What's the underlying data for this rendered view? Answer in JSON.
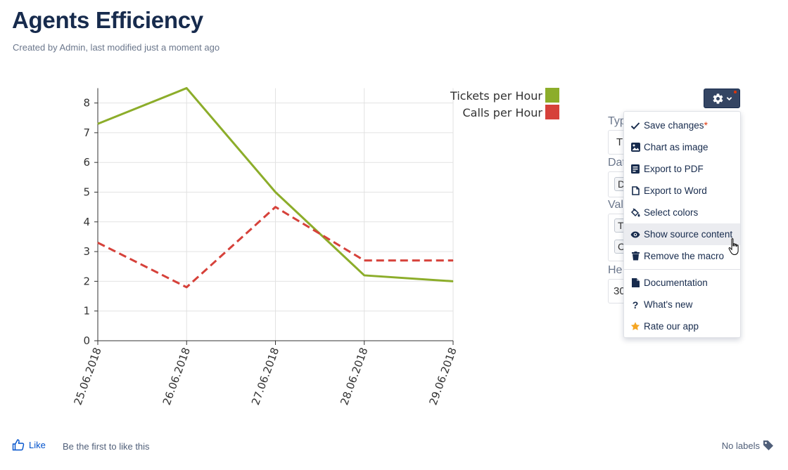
{
  "page": {
    "title": "Agents Efficiency",
    "meta": "Created by Admin, last modified just a moment ago"
  },
  "chart_data": {
    "type": "line",
    "categories": [
      "25.06.2018",
      "26.06.2018",
      "27.06.2018",
      "28.06.2018",
      "29.06.2018"
    ],
    "series": [
      {
        "name": "Tickets per Hour",
        "values": [
          7.3,
          8.5,
          5.0,
          2.2,
          2.0
        ],
        "color": "#8cad2a",
        "dash": false
      },
      {
        "name": "Calls per Hour",
        "values": [
          3.3,
          1.8,
          4.5,
          2.7,
          2.7
        ],
        "color": "#d6413a",
        "dash": true
      }
    ],
    "yticks": [
      0,
      1,
      2,
      3,
      4,
      5,
      6,
      7,
      8
    ],
    "ylim": [
      0,
      8.5
    ],
    "grid": true,
    "legend_position": "top-right"
  },
  "side_panel": {
    "type_label": "Typ",
    "type_value": "T",
    "data_label": "Dat",
    "data_value": "D",
    "values_label": "Val",
    "values_chip1": "T",
    "values_chip2": "C",
    "height_label": "He",
    "height_value": "30"
  },
  "menu": {
    "items": [
      {
        "label": "Save changes",
        "icon": "check-icon"
      },
      {
        "label": "Chart as image",
        "icon": "image-icon"
      },
      {
        "label": "Export to PDF",
        "icon": "pdf-icon"
      },
      {
        "label": "Export to Word",
        "icon": "word-icon"
      },
      {
        "label": "Select colors",
        "icon": "paint-bucket-icon"
      },
      {
        "label": "Show source content",
        "icon": "eye-icon"
      },
      {
        "label": "Remove the macro",
        "icon": "trash-icon"
      },
      {
        "label": "Documentation",
        "icon": "document-icon"
      },
      {
        "label": "What's new",
        "icon": "question-icon"
      },
      {
        "label": "Rate our app",
        "icon": "star-icon"
      }
    ],
    "required_marker": "*"
  },
  "footer": {
    "like_label": "Like",
    "first_like": "Be the first to like this",
    "labels": "No labels"
  }
}
